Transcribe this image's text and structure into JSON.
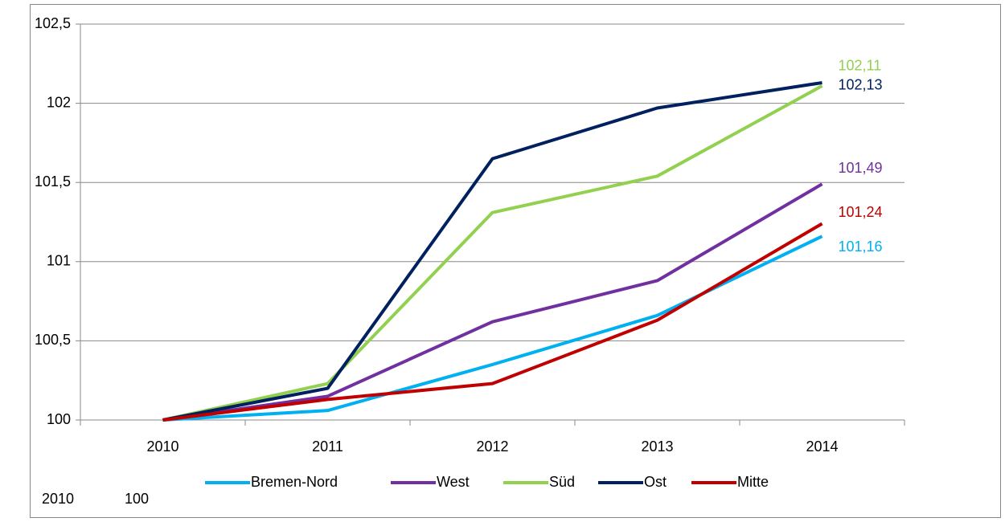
{
  "chart_data": {
    "type": "line",
    "categories": [
      "2010",
      "2011",
      "2012",
      "2013",
      "2014"
    ],
    "series": [
      {
        "name": "Bremen-Nord",
        "color": "#00b0f0",
        "values": [
          100,
          100.06,
          100.35,
          100.66,
          101.16
        ],
        "value_labels": [
          null,
          null,
          null,
          null,
          "101,16"
        ]
      },
      {
        "name": "West",
        "color": "#7030a0",
        "values": [
          100,
          100.15,
          100.62,
          100.88,
          101.49
        ],
        "value_labels": [
          null,
          null,
          null,
          null,
          "101,49"
        ]
      },
      {
        "name": "Süd",
        "color": "#92d050",
        "values": [
          100,
          100.23,
          101.31,
          101.54,
          102.11
        ],
        "value_labels": [
          null,
          null,
          null,
          null,
          "102,11"
        ]
      },
      {
        "name": "Ost",
        "color": "#002060",
        "values": [
          100,
          100.2,
          101.65,
          101.97,
          102.13
        ],
        "value_labels": [
          null,
          null,
          null,
          null,
          "102,13"
        ]
      },
      {
        "name": "Mitte",
        "color": "#c00000",
        "values": [
          100,
          100.13,
          100.23,
          100.63,
          101.24
        ],
        "value_labels": [
          null,
          null,
          null,
          null,
          "101,24"
        ]
      }
    ],
    "ylim": [
      100,
      102.5
    ],
    "yticks": [
      100,
      {
        "value": 100.5,
        "label": "100,5"
      },
      101,
      {
        "value": 101.5,
        "label": "101,5"
      },
      102,
      {
        "value": 102.5,
        "label": "102,5"
      }
    ],
    "grid": true,
    "legend": "bottom",
    "annotations": [
      "2010",
      "100"
    ]
  }
}
